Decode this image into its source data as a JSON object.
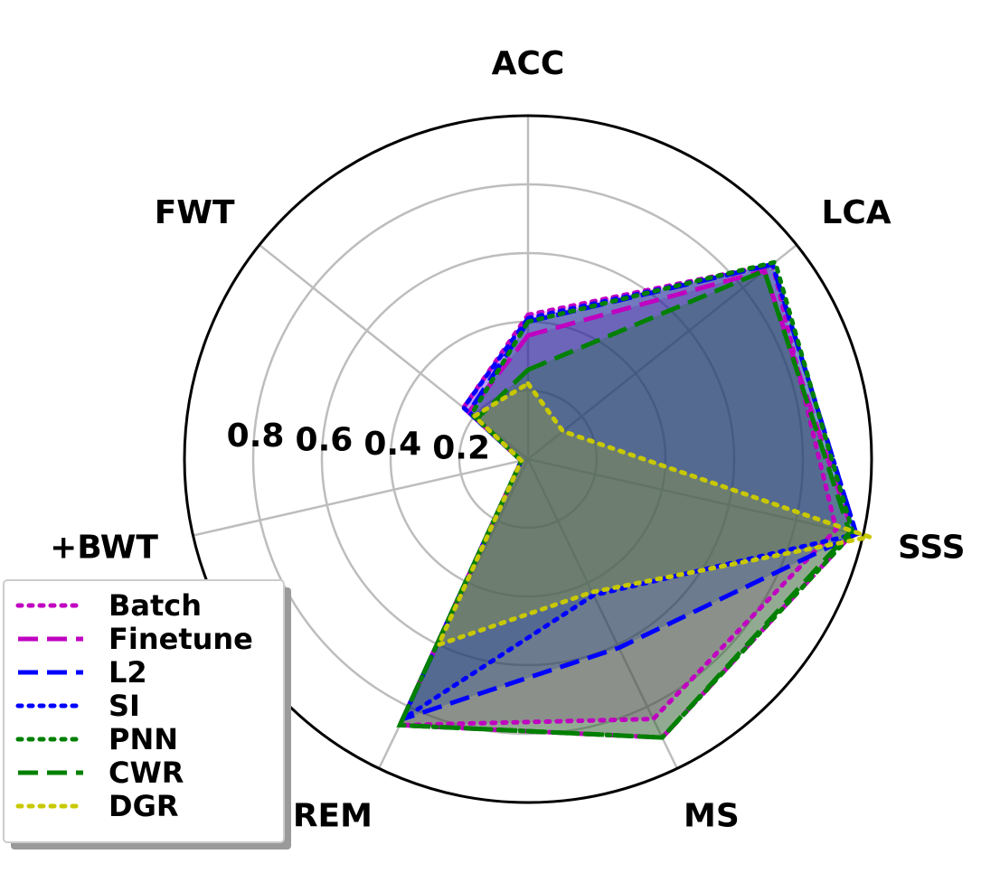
{
  "chart_data": {
    "type": "radar",
    "axes": [
      "ACC",
      "LCA",
      "SSS",
      "MS",
      "REM",
      "+BWT",
      "FWT"
    ],
    "rticks": [
      "0.2",
      "0.4",
      "0.6",
      "0.8"
    ],
    "rtick_values": [
      0.2,
      0.4,
      0.6,
      0.8
    ],
    "rlim": [
      0,
      1
    ],
    "grid": true,
    "legend_position": "bottom-left",
    "series": [
      {
        "name": "Batch",
        "color": "#c000c0",
        "linestyle": "dotted",
        "values": [
          0.42,
          0.91,
          0.92,
          0.84,
          0.86,
          0.02,
          0.24
        ]
      },
      {
        "name": "Finetune",
        "color": "#c000c0",
        "linestyle": "dashed",
        "values": [
          0.36,
          0.88,
          0.97,
          0.9,
          0.86,
          0.02,
          0.22
        ]
      },
      {
        "name": "L2",
        "color": "#0000ff",
        "linestyle": "dashed",
        "values": [
          0.4,
          0.91,
          0.98,
          0.61,
          0.84,
          0.02,
          0.22
        ]
      },
      {
        "name": "SI",
        "color": "#0000ff",
        "linestyle": "dotted",
        "values": [
          0.41,
          0.91,
          0.98,
          0.44,
          0.84,
          0.02,
          0.24
        ]
      },
      {
        "name": "PNN",
        "color": "#008000",
        "linestyle": "dotted",
        "values": [
          0.4,
          0.92,
          0.97,
          0.9,
          0.86,
          0.02,
          0.21
        ]
      },
      {
        "name": "CWR",
        "color": "#008000",
        "linestyle": "dashed",
        "values": [
          0.26,
          0.88,
          0.96,
          0.9,
          0.86,
          0.02,
          0.19
        ]
      },
      {
        "name": "DGR",
        "color": "#c8c800",
        "linestyle": "dotted",
        "values": [
          0.22,
          0.13,
          1.02,
          0.43,
          0.6,
          0.02,
          0.2
        ]
      }
    ]
  }
}
